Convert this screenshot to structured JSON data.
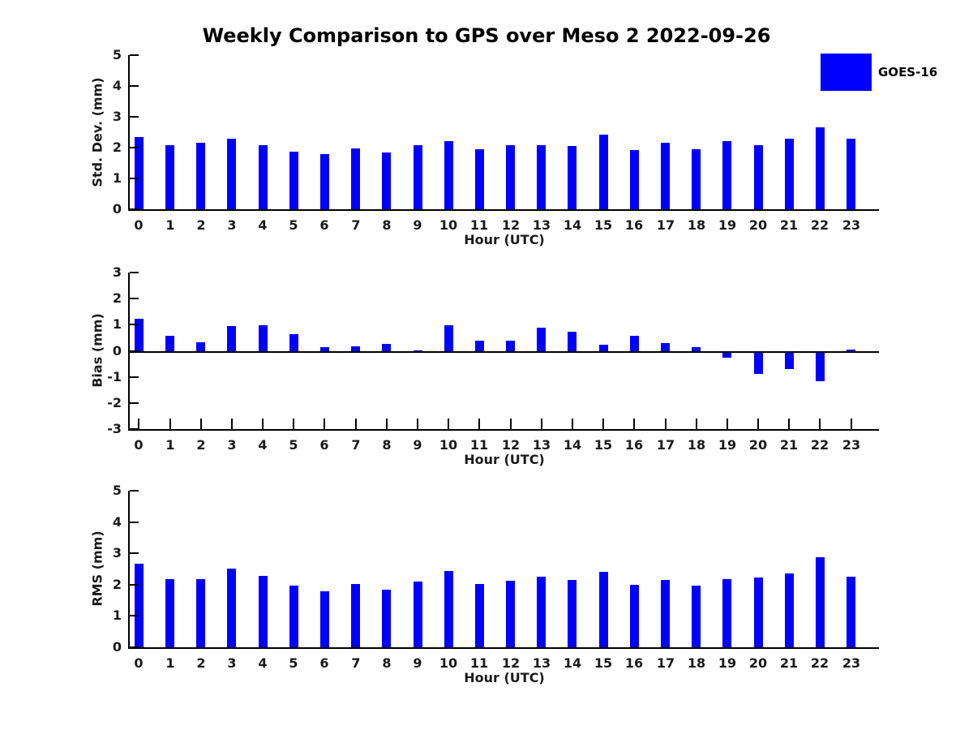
{
  "title": "Weekly Comparison to GPS over Meso 2 2022-09-26",
  "legend": {
    "label": "GOES-16",
    "color": "#0000ff",
    "position": "top-right"
  },
  "colors": {
    "bar": "#0000ff",
    "axis": "#000000",
    "text": "#1a1a1a"
  },
  "chart_data": [
    {
      "type": "bar",
      "ylabel": "Std. Dev. (mm)",
      "xlabel": "Hour (UTC)",
      "ylim": [
        0,
        5
      ],
      "yticks": [
        0,
        1,
        2,
        3,
        4,
        5
      ],
      "categories": [
        "0",
        "1",
        "2",
        "3",
        "4",
        "5",
        "6",
        "7",
        "8",
        "9",
        "10",
        "11",
        "12",
        "13",
        "14",
        "15",
        "16",
        "17",
        "18",
        "19",
        "20",
        "21",
        "22",
        "23"
      ],
      "series": [
        {
          "name": "GOES-16",
          "values": [
            2.35,
            2.09,
            2.15,
            2.3,
            2.07,
            1.86,
            1.78,
            1.98,
            1.83,
            2.09,
            2.22,
            1.94,
            2.09,
            2.07,
            2.04,
            2.41,
            1.93,
            2.15,
            1.96,
            2.21,
            2.07,
            2.28,
            2.65,
            2.28
          ]
        }
      ],
      "legend_shown": true,
      "grid": false
    },
    {
      "type": "bar",
      "ylabel": "Bias (mm)",
      "xlabel": "Hour (UTC)",
      "ylim": [
        -3,
        3
      ],
      "yticks": [
        -3,
        -2,
        -1,
        0,
        1,
        2,
        3
      ],
      "categories": [
        "0",
        "1",
        "2",
        "3",
        "4",
        "5",
        "6",
        "7",
        "8",
        "9",
        "10",
        "11",
        "12",
        "13",
        "14",
        "15",
        "16",
        "17",
        "18",
        "19",
        "20",
        "21",
        "22",
        "23"
      ],
      "series": [
        {
          "name": "GOES-16",
          "values": [
            1.28,
            0.61,
            0.38,
            1.0,
            1.04,
            0.69,
            0.18,
            0.23,
            0.3,
            0.05,
            1.04,
            0.43,
            0.43,
            0.92,
            0.77,
            0.29,
            0.63,
            0.33,
            0.18,
            -0.22,
            -0.83,
            -0.65,
            -1.12,
            0.08
          ]
        }
      ],
      "legend_shown": false,
      "grid": false
    },
    {
      "type": "bar",
      "ylabel": "RMS (mm)",
      "xlabel": "Hour (UTC)",
      "ylim": [
        0,
        5
      ],
      "yticks": [
        0,
        1,
        2,
        3,
        4,
        5
      ],
      "categories": [
        "0",
        "1",
        "2",
        "3",
        "4",
        "5",
        "6",
        "7",
        "8",
        "9",
        "10",
        "11",
        "12",
        "13",
        "14",
        "15",
        "16",
        "17",
        "18",
        "19",
        "20",
        "21",
        "22",
        "23"
      ],
      "series": [
        {
          "name": "GOES-16",
          "values": [
            2.67,
            2.18,
            2.18,
            2.51,
            2.28,
            1.98,
            1.78,
            2.01,
            1.85,
            2.09,
            2.44,
            2.01,
            2.13,
            2.25,
            2.15,
            2.4,
            2.0,
            2.15,
            1.97,
            2.18,
            2.23,
            2.36,
            2.87,
            2.25
          ]
        }
      ],
      "legend_shown": false,
      "grid": false
    }
  ]
}
